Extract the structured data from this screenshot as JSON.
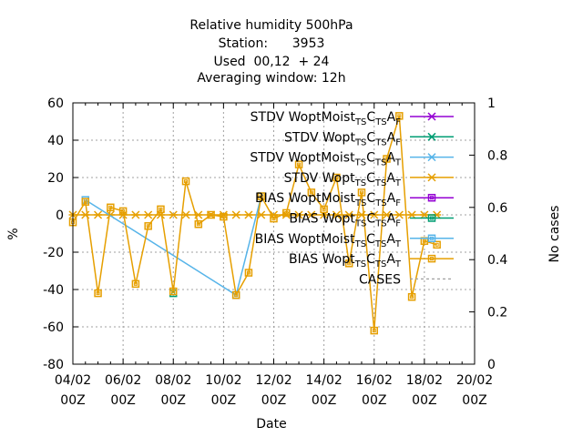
{
  "chart_data": {
    "type": "line",
    "title_lines": [
      "Relative humidity 500hPa",
      "Station:      3953",
      "Used  00,12  + 24",
      "Averaging window: 12h"
    ],
    "xlabel": "Date",
    "ylabel": "%",
    "y2label": "No cases",
    "x_ticks": [
      {
        "day": 4,
        "line1": "04/02",
        "line2": "00Z"
      },
      {
        "day": 6,
        "line1": "06/02",
        "line2": "00Z"
      },
      {
        "day": 8,
        "line1": "08/02",
        "line2": "00Z"
      },
      {
        "day": 10,
        "line1": "10/02",
        "line2": "00Z"
      },
      {
        "day": 12,
        "line1": "12/02",
        "line2": "00Z"
      },
      {
        "day": 14,
        "line1": "14/02",
        "line2": "00Z"
      },
      {
        "day": 16,
        "line1": "16/02",
        "line2": "00Z"
      },
      {
        "day": 18,
        "line1": "18/02",
        "line2": "00Z"
      },
      {
        "day": 20,
        "line1": "20/02",
        "line2": "00Z"
      }
    ],
    "xlim": [
      4,
      20
    ],
    "ylim": [
      -80,
      60
    ],
    "y_ticks": [
      -80,
      -60,
      -40,
      -20,
      0,
      20,
      40,
      60
    ],
    "y2lim": [
      0,
      1
    ],
    "y2_ticks": [
      "0",
      "0.2",
      "0.4",
      "0.6",
      "0.8",
      "1"
    ],
    "grid": true,
    "legend_position": "top-right",
    "series": [
      {
        "legend": [
          "STDV WoptMoist",
          "TS",
          "C",
          "TS",
          "A",
          "F"
        ],
        "color": "#9400d3",
        "marker": "x-star",
        "values": []
      },
      {
        "legend": [
          "STDV Wopt",
          "TS",
          "C",
          "TS",
          "A",
          "F"
        ],
        "color": "#009e73",
        "marker": "x-star",
        "values": []
      },
      {
        "legend": [
          "STDV WoptMoist",
          "TS",
          "C",
          "TS",
          "A",
          "T"
        ],
        "color": "#56b4e9",
        "marker": "x-star",
        "values": []
      },
      {
        "legend": [
          "STDV Wopt",
          "TS",
          "C",
          "TS",
          "A",
          "T"
        ],
        "color": "#e69f00",
        "marker": "x-star",
        "x": [
          4,
          4.5,
          5,
          5.5,
          6,
          6.5,
          7,
          7.5,
          8,
          8.5,
          9,
          9.5,
          10,
          10.5,
          11,
          11.5,
          12,
          12.5,
          13,
          13.5,
          14,
          14.5,
          15,
          15.5,
          16,
          16.5,
          17,
          17.5,
          18,
          18.5
        ],
        "values": [
          0,
          0,
          0,
          0,
          0,
          0,
          0,
          0,
          0,
          0,
          0,
          0,
          0,
          0,
          0,
          0,
          0,
          0,
          0,
          0,
          0,
          0,
          0,
          0,
          0,
          0,
          0,
          0,
          0,
          0
        ]
      },
      {
        "legend": [
          "BIAS WoptMoist",
          "TS",
          "C",
          "TS",
          "A",
          "F"
        ],
        "color": "#9400d3",
        "marker": "square",
        "values": []
      },
      {
        "legend": [
          "BIAS Wopt",
          "TS",
          "C",
          "TS",
          "A",
          "F"
        ],
        "color": "#009e73",
        "marker": "square",
        "x": [
          8
        ],
        "values": [
          -42
        ]
      },
      {
        "legend": [
          "BIAS WoptMoist",
          "TS",
          "C",
          "TS",
          "A",
          "T"
        ],
        "color": "#56b4e9",
        "marker": "square",
        "x": [
          4.5,
          10.5,
          11.5
        ],
        "values": [
          8,
          -43,
          10
        ]
      },
      {
        "legend": [
          "BIAS Wopt",
          "TS",
          "C",
          "TS",
          "A",
          "T"
        ],
        "color": "#e69f00",
        "marker": "square",
        "x": [
          4,
          4.5,
          5,
          5.5,
          6,
          6.5,
          7,
          7.5,
          8,
          8.5,
          9,
          9.5,
          10,
          10.5,
          11,
          11.5,
          12,
          12.5,
          13,
          13.5,
          14,
          14.5,
          15,
          15.5,
          16,
          16.5,
          17,
          17.5,
          18,
          18.5
        ],
        "values": [
          -4,
          7,
          -42,
          4,
          2,
          -37,
          -6,
          3,
          -41,
          18,
          -5,
          0,
          -1,
          -43,
          -31,
          10,
          -2,
          1,
          27,
          12,
          3,
          20,
          -26,
          12,
          -62,
          30,
          53,
          -44,
          -14,
          -16
        ]
      },
      {
        "legend": [
          "CASES"
        ],
        "color": "#a0a0a0",
        "marker": "none",
        "values": []
      }
    ]
  }
}
